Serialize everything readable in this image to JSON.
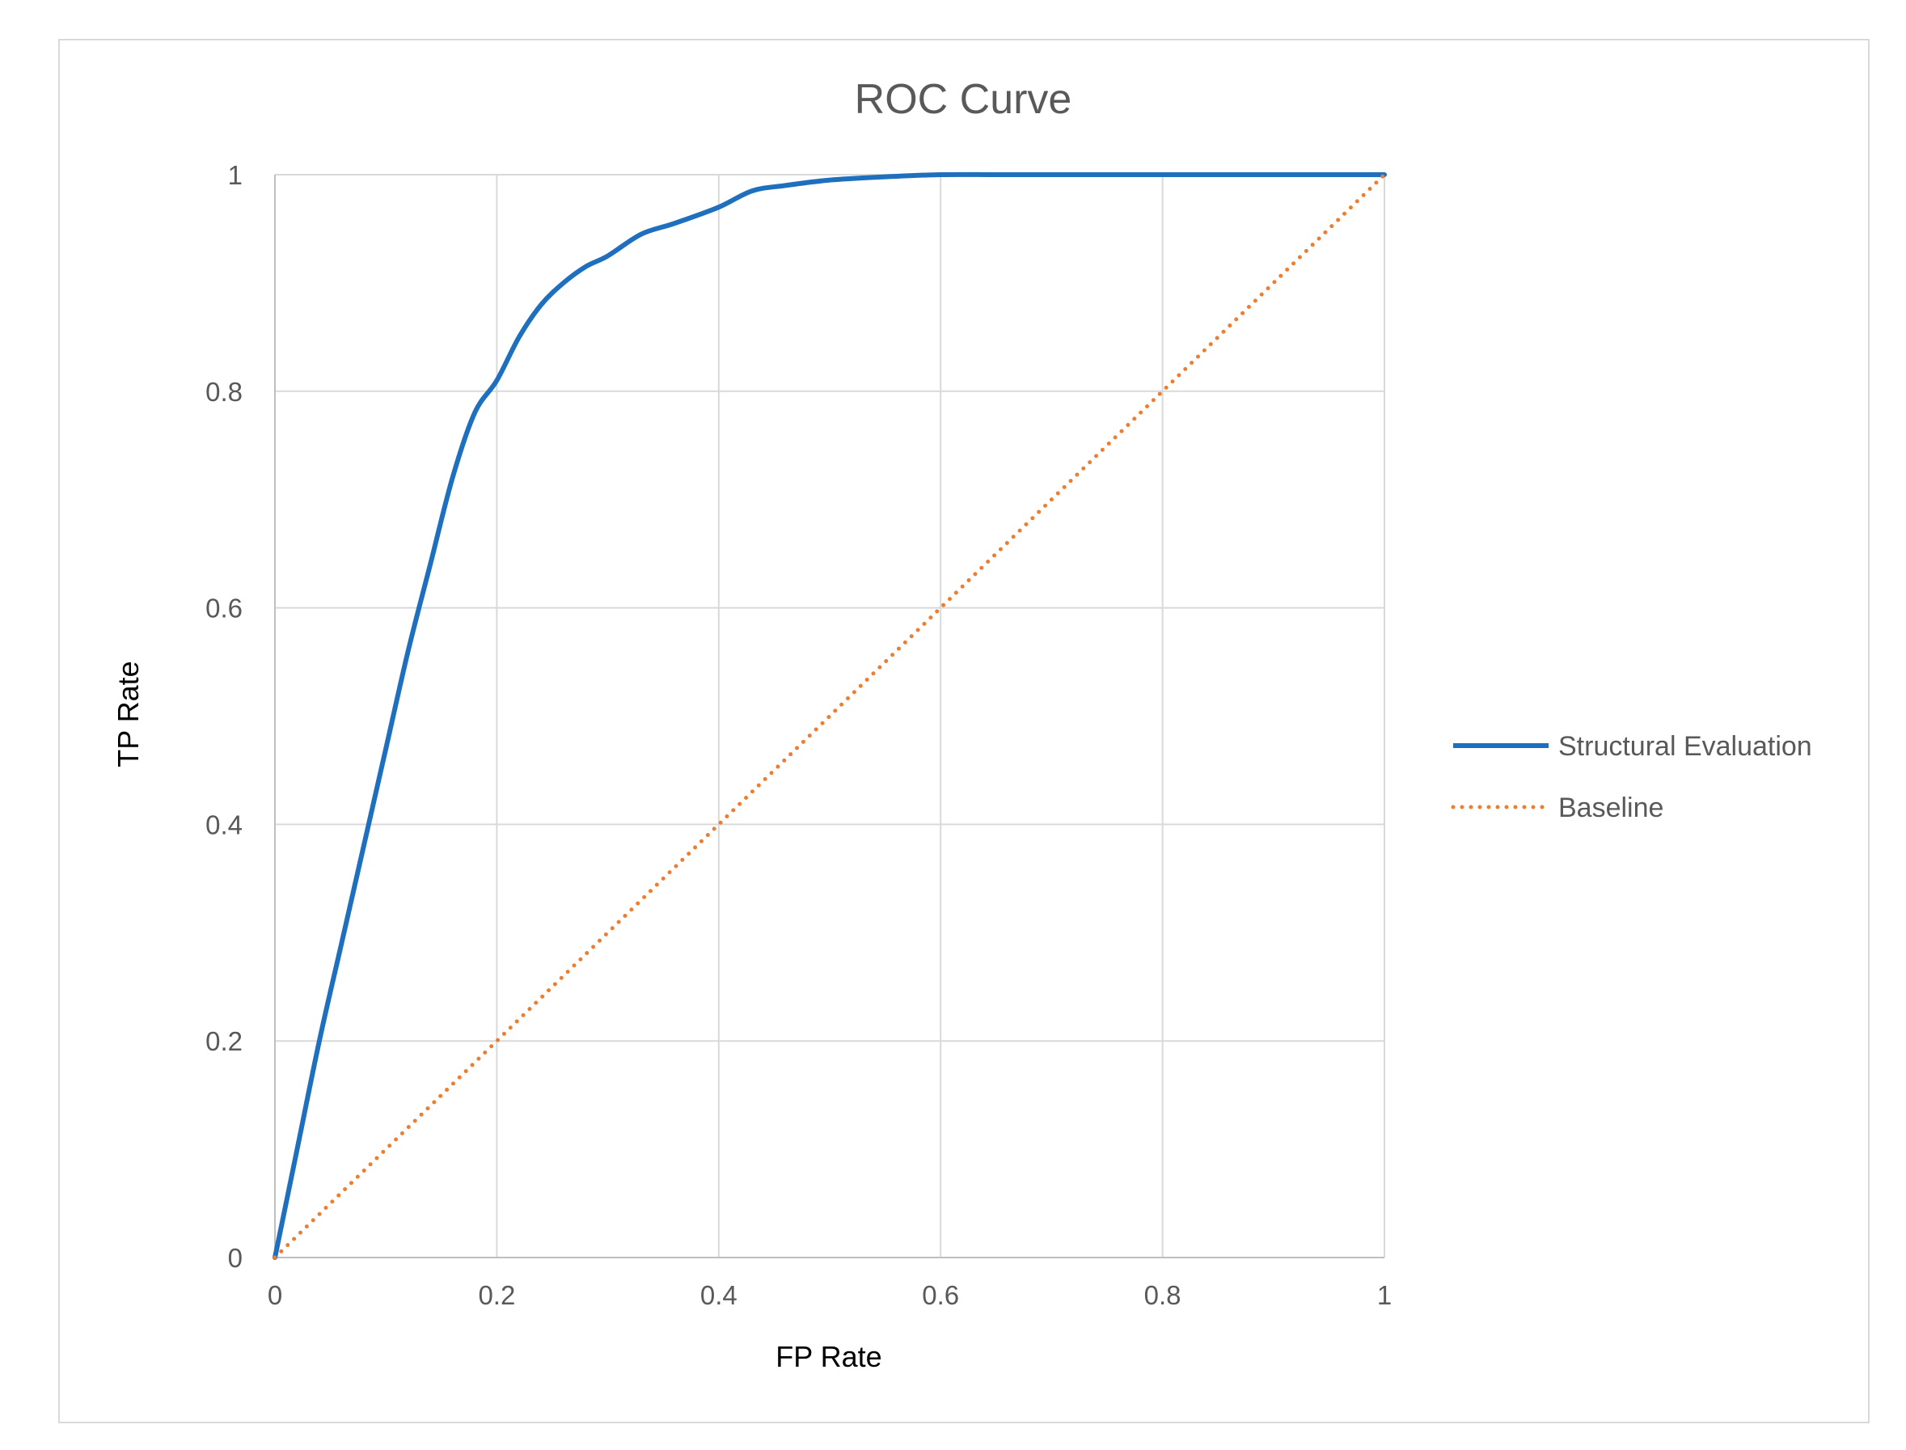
{
  "chart_data": {
    "type": "line",
    "title": "ROC Curve",
    "xlabel": "FP Rate",
    "ylabel": "TP Rate",
    "xlim": [
      0,
      1
    ],
    "ylim": [
      0,
      1
    ],
    "x_ticks": [
      "0",
      "0.2",
      "0.4",
      "0.6",
      "0.8",
      "1"
    ],
    "y_ticks": [
      "0",
      "0.2",
      "0.4",
      "0.6",
      "0.8",
      "1"
    ],
    "grid": true,
    "legend_position": "right",
    "series": [
      {
        "name": "Structural Evaluation",
        "color": "#1f6fbf",
        "style": "solid",
        "x": [
          0,
          0.02,
          0.04,
          0.06,
          0.08,
          0.1,
          0.12,
          0.14,
          0.16,
          0.18,
          0.2,
          0.22,
          0.24,
          0.26,
          0.28,
          0.3,
          0.33,
          0.36,
          0.4,
          0.43,
          0.46,
          0.5,
          0.55,
          0.6,
          0.65,
          0.7,
          0.8,
          0.9,
          1.0
        ],
        "y": [
          0,
          0.1,
          0.2,
          0.29,
          0.38,
          0.47,
          0.56,
          0.64,
          0.72,
          0.78,
          0.81,
          0.85,
          0.88,
          0.9,
          0.915,
          0.925,
          0.945,
          0.955,
          0.97,
          0.985,
          0.99,
          0.995,
          0.998,
          1.0,
          1.0,
          1.0,
          1.0,
          1.0,
          1.0
        ]
      },
      {
        "name": "Baseline",
        "color": "#ed7d31",
        "style": "dotted",
        "x": [
          0,
          1
        ],
        "y": [
          0,
          1
        ]
      }
    ]
  }
}
